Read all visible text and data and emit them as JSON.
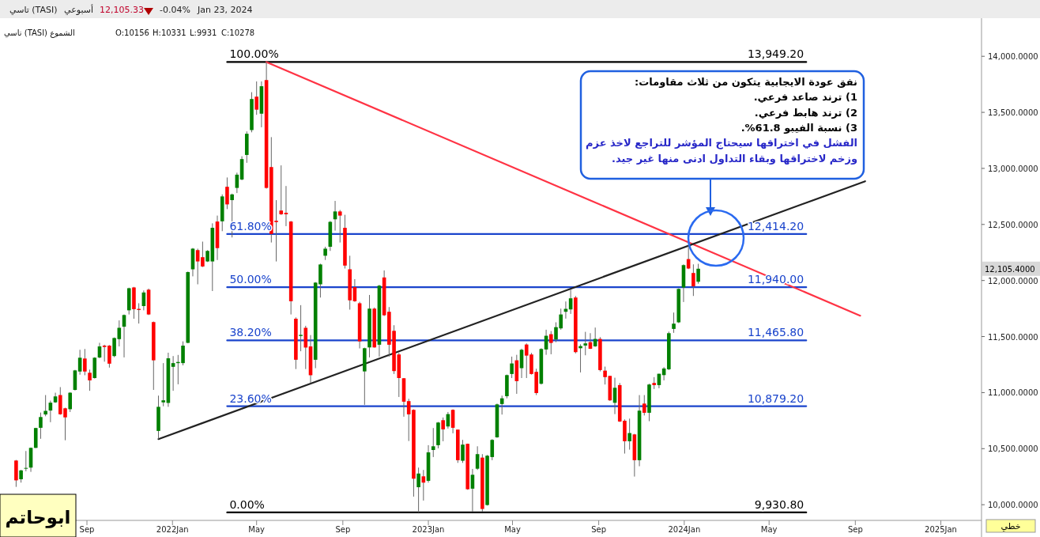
{
  "chart_data": {
    "type": "candlestick",
    "title": "تاسي (TASI)",
    "subtitle": "أسبوعي",
    "xlim": [
      "2021-04-30",
      "2025-02-28"
    ],
    "ylim": [
      9860,
      14340
    ],
    "xticks": [
      {
        "value": "2021-09-01",
        "label": "Sep"
      },
      {
        "value": "2022-01-01",
        "label": "2022Jan"
      },
      {
        "value": "2022-05-01",
        "label": "May"
      },
      {
        "value": "2022-09-01",
        "label": "Sep"
      },
      {
        "value": "2023-01-01",
        "label": "2023Jan"
      },
      {
        "value": "2023-05-01",
        "label": "May"
      },
      {
        "value": "2023-09-01",
        "label": "Sep"
      },
      {
        "value": "2024-01-01",
        "label": "2024Jan"
      },
      {
        "value": "2024-05-01",
        "label": "May"
      },
      {
        "value": "2024-09-01",
        "label": "Sep"
      },
      {
        "value": "2025-01-01",
        "label": "2025Jan"
      }
    ],
    "yticks": [
      {
        "value": 10000,
        "label": "10,000.0000"
      },
      {
        "value": 10500,
        "label": "10,500.0000"
      },
      {
        "value": 11000,
        "label": "11,000.0000"
      },
      {
        "value": 11500,
        "label": "11,500.0000"
      },
      {
        "value": 12000,
        "label": "12,000.0000"
      },
      {
        "value": 12500,
        "label": "12,500.0000"
      },
      {
        "value": 13000,
        "label": "13,000.0000"
      },
      {
        "value": 13500,
        "label": "13,500.0000"
      },
      {
        "value": 14000,
        "label": "14,000.0000"
      }
    ],
    "x": [
      "2021-05-23",
      "2021-05-30",
      "2021-06-06",
      "2021-06-13",
      "2021-06-20",
      "2021-06-27",
      "2021-07-04",
      "2021-07-11",
      "2021-07-18",
      "2021-07-25",
      "2021-08-01",
      "2021-08-08",
      "2021-08-15",
      "2021-08-22",
      "2021-08-29",
      "2021-09-05",
      "2021-09-12",
      "2021-09-19",
      "2021-09-26",
      "2021-10-03",
      "2021-10-10",
      "2021-10-17",
      "2021-10-24",
      "2021-10-31",
      "2021-11-07",
      "2021-11-14",
      "2021-11-21",
      "2021-11-28",
      "2021-12-05",
      "2021-12-12",
      "2021-12-19",
      "2021-12-26",
      "2022-01-02",
      "2022-01-09",
      "2022-01-16",
      "2022-01-23",
      "2022-01-30",
      "2022-02-06",
      "2022-02-13",
      "2022-02-20",
      "2022-02-27",
      "2022-03-06",
      "2022-03-13",
      "2022-03-20",
      "2022-03-27",
      "2022-04-03",
      "2022-04-10",
      "2022-04-17",
      "2022-04-24",
      "2022-05-01",
      "2022-05-08",
      "2022-05-15",
      "2022-05-22",
      "2022-05-29",
      "2022-06-05",
      "2022-06-12",
      "2022-06-19",
      "2022-06-26",
      "2022-07-03",
      "2022-07-10",
      "2022-07-17",
      "2022-07-24",
      "2022-07-31",
      "2022-08-07",
      "2022-08-14",
      "2022-08-21",
      "2022-08-28",
      "2022-09-04",
      "2022-09-11",
      "2022-09-18",
      "2022-09-25",
      "2022-10-02",
      "2022-10-09",
      "2022-10-16",
      "2022-10-23",
      "2022-10-30",
      "2022-11-06",
      "2022-11-13",
      "2022-11-20",
      "2022-11-27",
      "2022-12-04",
      "2022-12-11",
      "2022-12-18",
      "2022-12-25",
      "2023-01-01",
      "2023-01-08",
      "2023-01-15",
      "2023-01-22",
      "2023-01-29",
      "2023-02-05",
      "2023-02-12",
      "2023-02-19",
      "2023-02-26",
      "2023-03-05",
      "2023-03-12",
      "2023-03-19",
      "2023-03-26",
      "2023-04-02",
      "2023-04-09",
      "2023-04-16",
      "2023-04-23",
      "2023-04-30",
      "2023-05-07",
      "2023-05-14",
      "2023-05-21",
      "2023-05-28",
      "2023-06-04",
      "2023-06-11",
      "2023-06-18",
      "2023-06-25",
      "2023-07-02",
      "2023-07-09",
      "2023-07-16",
      "2023-07-23",
      "2023-07-30",
      "2023-08-06",
      "2023-08-13",
      "2023-08-20",
      "2023-08-27",
      "2023-09-03",
      "2023-09-10",
      "2023-09-17",
      "2023-09-24",
      "2023-10-01",
      "2023-10-08",
      "2023-10-15",
      "2023-10-22",
      "2023-10-29",
      "2023-11-05",
      "2023-11-12",
      "2023-11-19",
      "2023-11-26",
      "2023-12-03",
      "2023-12-10",
      "2023-12-17",
      "2023-12-24",
      "2023-12-31",
      "2024-01-07",
      "2024-01-14",
      "2024-01-21"
    ],
    "ohlc": [
      [
        10394,
        10399,
        10159,
        10217
      ],
      [
        10227,
        10311,
        10197,
        10306
      ],
      [
        10321,
        10479,
        10298,
        10328
      ],
      [
        10331,
        10510,
        10293,
        10507
      ],
      [
        10507,
        10686,
        10505,
        10684
      ],
      [
        10686,
        10822,
        10588,
        10782
      ],
      [
        10805,
        10978,
        10789,
        10837
      ],
      [
        10840,
        10928,
        10736,
        10910
      ],
      [
        10913,
        10999,
        10908,
        10966
      ],
      [
        10978,
        11049,
        10802,
        10807
      ],
      [
        10860,
        10865,
        10575,
        10779
      ],
      [
        10852,
        11004,
        10827,
        10999
      ],
      [
        11024,
        11203,
        11019,
        11198
      ],
      [
        11188,
        11382,
        11160,
        11311
      ],
      [
        11304,
        11389,
        11155,
        11188
      ],
      [
        11177,
        11205,
        11016,
        11109
      ],
      [
        11130,
        11316,
        11125,
        11311
      ],
      [
        11313,
        11444,
        11306,
        11412
      ],
      [
        11419,
        11427,
        11276,
        11407
      ],
      [
        11419,
        11424,
        11223,
        11258
      ],
      [
        11326,
        11492,
        11316,
        11487
      ],
      [
        11477,
        11644,
        11412,
        11578
      ],
      [
        11588,
        11697,
        11314,
        11692
      ],
      [
        11734,
        11936,
        11697,
        11931
      ],
      [
        11938,
        11943,
        11659,
        11744
      ],
      [
        11747,
        11797,
        11616,
        11737
      ],
      [
        11772,
        11911,
        11734,
        11893
      ],
      [
        11918,
        11928,
        11692,
        11697
      ],
      [
        11629,
        11634,
        11024,
        11288
      ],
      [
        10658,
        10973,
        10588,
        10873
      ],
      [
        10913,
        11263,
        10878,
        10931
      ],
      [
        10908,
        11356,
        10873,
        11306
      ],
      [
        11230,
        11326,
        11016,
        11263
      ],
      [
        11263,
        11336,
        11074,
        11273
      ],
      [
        11263,
        11457,
        11243,
        11419
      ],
      [
        11444,
        12080,
        11440,
        12075
      ],
      [
        12100,
        12290,
        12037,
        12284
      ],
      [
        12271,
        12284,
        11966,
        12170
      ],
      [
        12208,
        12347,
        12120,
        12125
      ],
      [
        12170,
        12271,
        12165,
        12264
      ],
      [
        12170,
        12510,
        11906,
        12470
      ],
      [
        12526,
        12579,
        12183,
        12289
      ],
      [
        12528,
        12768,
        12440,
        12750
      ],
      [
        12836,
        12919,
        12637,
        12679
      ],
      [
        12717,
        12775,
        12384,
        12768
      ],
      [
        12826,
        12962,
        12780,
        12944
      ],
      [
        12901,
        13108,
        12894,
        13083
      ],
      [
        13120,
        13330,
        13050,
        13309
      ],
      [
        13342,
        13680,
        13322,
        13619
      ],
      [
        13640,
        13776,
        13478,
        13524
      ],
      [
        13488,
        13776,
        13367,
        13733
      ],
      [
        13788,
        13949,
        12820,
        12826
      ],
      [
        13012,
        13279,
        12339,
        12415
      ],
      [
        12533,
        12717,
        12170,
        12521
      ],
      [
        12624,
        13027,
        12585,
        12591
      ],
      [
        12604,
        12843,
        12485,
        12591
      ],
      [
        12526,
        12531,
        11697,
        11815
      ],
      [
        11659,
        11671,
        11210,
        11293
      ],
      [
        11505,
        11780,
        11369,
        11515
      ],
      [
        11578,
        11596,
        11210,
        11402
      ],
      [
        11412,
        11513,
        11084,
        11155
      ],
      [
        11293,
        11986,
        11218,
        11981
      ],
      [
        11966,
        12150,
        11848,
        12143
      ],
      [
        12221,
        12301,
        12183,
        12284
      ],
      [
        12301,
        12531,
        12264,
        12523
      ],
      [
        12546,
        12710,
        12445,
        12616
      ],
      [
        12616,
        12629,
        12339,
        12579
      ],
      [
        12470,
        12586,
        12107,
        12133
      ],
      [
        12100,
        12221,
        11740,
        11823
      ],
      [
        11941,
        12012,
        11810,
        11815
      ],
      [
        11797,
        11810,
        11394,
        11457
      ],
      [
        11189,
        11401,
        10891,
        11396
      ],
      [
        11403,
        11871,
        11314,
        11749
      ],
      [
        11749,
        11759,
        11401,
        11403
      ],
      [
        11427,
        11961,
        11321,
        11954
      ],
      [
        12027,
        12090,
        11683,
        11690
      ],
      [
        11721,
        11763,
        11321,
        11427
      ],
      [
        11551,
        11601,
        11166,
        11192
      ],
      [
        11340,
        11354,
        10961,
        11130
      ],
      [
        11128,
        11130,
        10785,
        10919
      ],
      [
        10924,
        10945,
        10568,
        10806
      ],
      [
        10846,
        10851,
        10072,
        10232
      ],
      [
        10156,
        10331,
        9931,
        10278
      ],
      [
        10253,
        10310,
        10037,
        10197
      ],
      [
        10213,
        10531,
        10197,
        10467
      ],
      [
        10488,
        10684,
        10425,
        10521
      ],
      [
        10531,
        10738,
        10503,
        10733
      ],
      [
        10754,
        10778,
        10566,
        10672
      ],
      [
        10698,
        10827,
        10679,
        10808
      ],
      [
        10846,
        10851,
        10637,
        10686
      ],
      [
        10670,
        10670,
        10373,
        10397
      ],
      [
        10392,
        10578,
        10373,
        10536
      ],
      [
        10543,
        10545,
        10133,
        10138
      ],
      [
        10143,
        10319,
        9935,
        10267
      ],
      [
        10321,
        10521,
        10310,
        10451
      ],
      [
        10420,
        10451,
        9935,
        9962
      ],
      [
        9997,
        10444,
        9992,
        10437
      ],
      [
        10425,
        10585,
        10397,
        10578
      ],
      [
        10601,
        10902,
        10597,
        10895
      ],
      [
        10898,
        10973,
        10804,
        10949
      ],
      [
        10968,
        11161,
        10949,
        11156
      ],
      [
        11166,
        11321,
        11130,
        11260
      ],
      [
        11288,
        11337,
        10989,
        11102
      ],
      [
        11218,
        11392,
        11130,
        11382
      ],
      [
        11429,
        11439,
        11130,
        11330
      ],
      [
        11340,
        11354,
        11161,
        11166
      ],
      [
        11185,
        11213,
        10978,
        10996
      ],
      [
        11079,
        11396,
        11072,
        11389
      ],
      [
        11385,
        11561,
        11337,
        11507
      ],
      [
        11521,
        11549,
        11342,
        11443
      ],
      [
        11474,
        11627,
        11450,
        11584
      ],
      [
        11573,
        11749,
        11561,
        11697
      ],
      [
        11721,
        11813,
        11660,
        11747
      ],
      [
        11742,
        11918,
        11702,
        11841
      ],
      [
        11848,
        11862,
        11350,
        11361
      ],
      [
        11396,
        11431,
        11180,
        11415
      ],
      [
        11420,
        11542,
        11333,
        11439
      ],
      [
        11450,
        11530,
        11389,
        11391
      ],
      [
        11413,
        11580,
        11408,
        11479
      ],
      [
        11479,
        11495,
        11189,
        11201
      ],
      [
        11196,
        11232,
        11072,
        11138
      ],
      [
        11149,
        11149,
        10926,
        10931
      ],
      [
        10909,
        11133,
        10808,
        11043
      ],
      [
        11067,
        11086,
        10738,
        10742
      ],
      [
        10749,
        10761,
        10456,
        10566
      ],
      [
        10566,
        10768,
        10491,
        10639
      ],
      [
        10627,
        10632,
        10251,
        10397
      ],
      [
        10397,
        10978,
        10343,
        10839
      ],
      [
        10902,
        10978,
        10796,
        10820
      ],
      [
        10820,
        11079,
        10745,
        11072
      ],
      [
        11086,
        11138,
        11032,
        11067
      ],
      [
        11067,
        11168,
        11039,
        11168
      ],
      [
        11156,
        11227,
        11109,
        11215
      ],
      [
        11208,
        11544,
        11201,
        11530
      ],
      [
        11568,
        11714,
        11533,
        11615
      ],
      [
        11627,
        11930,
        11620,
        11925
      ],
      [
        11937,
        12144,
        11808,
        12137
      ],
      [
        12191,
        12314,
        12102,
        12107
      ],
      [
        12067,
        12144,
        11862,
        11949
      ],
      [
        11989,
        12149,
        11972,
        12105
      ]
    ],
    "colors": [
      "#ff0000",
      "#008000",
      "#008000",
      "#008000",
      "#008000",
      "#008000",
      "#008000",
      "#008000",
      "#008000",
      "#ff0000",
      "#ff0000",
      "#008000",
      "#008000",
      "#008000",
      "#ff0000",
      "#ff0000",
      "#008000",
      "#008000",
      "#ff0000",
      "#ff0000",
      "#008000",
      "#008000",
      "#008000",
      "#008000",
      "#ff0000",
      "#ff0000",
      "#008000",
      "#ff0000",
      "#ff0000",
      "#008000",
      "#008000",
      "#008000",
      "#008000",
      "#008000",
      "#008000",
      "#008000",
      "#008000",
      "#ff0000",
      "#ff0000",
      "#008000",
      "#008000",
      "#ff0000",
      "#008000",
      "#ff0000",
      "#008000",
      "#008000",
      "#008000",
      "#008000",
      "#008000",
      "#ff0000",
      "#008000",
      "#ff0000",
      "#ff0000",
      "#ff0000",
      "#ff0000",
      "#ff0000",
      "#ff0000",
      "#ff0000",
      "#008000",
      "#ff0000",
      "#ff0000",
      "#008000",
      "#008000",
      "#008000",
      "#008000",
      "#008000",
      "#ff0000",
      "#ff0000",
      "#ff0000",
      "#ff0000",
      "#ff0000",
      "#008000",
      "#008000",
      "#ff0000",
      "#008000",
      "#ff0000",
      "#ff0000",
      "#ff0000",
      "#ff0000",
      "#ff0000",
      "#ff0000",
      "#ff0000",
      "#008000",
      "#ff0000",
      "#008000",
      "#008000",
      "#008000",
      "#ff0000",
      "#008000",
      "#ff0000",
      "#ff0000",
      "#008000",
      "#ff0000",
      "#008000",
      "#008000",
      "#ff0000",
      "#008000",
      "#008000",
      "#008000",
      "#008000",
      "#008000",
      "#008000",
      "#ff0000",
      "#008000",
      "#ff0000",
      "#ff0000",
      "#ff0000",
      "#008000",
      "#008000",
      "#ff0000",
      "#008000",
      "#008000",
      "#008000",
      "#008000",
      "#ff0000",
      "#008000",
      "#008000",
      "#ff0000",
      "#008000",
      "#ff0000",
      "#ff0000",
      "#ff0000",
      "#008000",
      "#ff0000",
      "#ff0000",
      "#008000",
      "#ff0000",
      "#008000",
      "#ff0000",
      "#008000",
      "#ff0000",
      "#008000",
      "#008000",
      "#008000",
      "#008000",
      "#008000",
      "#008000",
      "#ff0000",
      "#ff0000",
      "#008000"
    ],
    "series": [
      {
        "type": "line",
        "color": "#000000",
        "x": [
          "2022-03-20",
          "2024-06-23"
        ],
        "values": [
          13949.2,
          13949.2
        ]
      },
      {
        "type": "line",
        "color": "#1a44cc",
        "x": [
          "2022-03-20",
          "2024-06-23"
        ],
        "values": [
          12414.2,
          12414.2
        ]
      },
      {
        "type": "line",
        "color": "#1a44cc",
        "x": [
          "2022-03-20",
          "2024-06-23"
        ],
        "values": [
          11940,
          11940
        ]
      },
      {
        "type": "line",
        "color": "#1a44cc",
        "x": [
          "2022-03-20",
          "2024-06-23"
        ],
        "values": [
          11465.8,
          11465.8
        ]
      },
      {
        "type": "line",
        "color": "#1a44cc",
        "x": [
          "2022-03-20",
          "2024-06-23"
        ],
        "values": [
          10879.2,
          10879.2
        ]
      },
      {
        "type": "line",
        "color": "#000000",
        "x": [
          "2022-03-20",
          "2024-06-23"
        ],
        "values": [
          9930.8,
          9930.8
        ]
      },
      {
        "type": "line",
        "color": "#ff3344",
        "x": [
          "2022-05-15",
          "2024-09-08"
        ],
        "values": [
          13949,
          11686
        ]
      },
      {
        "type": "line",
        "color": "#222222",
        "x": [
          "2021-12-12",
          "2024-09-15"
        ],
        "values": [
          10585,
          12885
        ]
      }
    ],
    "annotations": [
      "12,105.33",
      "-0.04%",
      "Jan 23, 2024",
      "تاسي (TASI) الشموع",
      "O:10156",
      "H:10331",
      "L:9931",
      "C:10278",
      "نفق عودة الايجابية يتكون من ثلاث مقاومات:",
      "1) ترند صاعد فرعي.",
      "2) ترند هابط فرعي.",
      "3) نسبة الفيبو 61.8%.",
      "الفشل في اختراقها سيحتاج المؤشر للتراجع لاخذ عزم",
      "وزخم لاختراقها وبقاء التداول ادنى منها غير جيد.",
      "ابوحاتم",
      "خطي",
      "12,105.4000",
      {
        "text": "100.00%",
        "x": "2022-03-20",
        "y": 13949.2
      },
      {
        "text": "13,949.20",
        "x": "2024-06-23",
        "y": 13949.2
      },
      {
        "text": "61.80%",
        "x": "2022-03-20",
        "y": 12414.2
      },
      {
        "text": "12,414.20",
        "x": "2024-06-23",
        "y": 12414.2
      },
      {
        "text": "50.00%",
        "x": "2022-03-20",
        "y": 11940
      },
      {
        "text": "11,940.00",
        "x": "2024-06-23",
        "y": 11940
      },
      {
        "text": "38.20%",
        "x": "2022-03-20",
        "y": 11465.8
      },
      {
        "text": "11,465.80",
        "x": "2024-06-23",
        "y": 11465.8
      },
      {
        "text": "23.60%",
        "x": "2022-03-20",
        "y": 10879.2
      },
      {
        "text": "10,879.20",
        "x": "2024-06-23",
        "y": 10879.2
      },
      {
        "text": "0.00%",
        "x": "2022-03-20",
        "y": 9930.8
      },
      {
        "text": "9,930.80",
        "x": "2024-06-23",
        "y": 9930.8
      }
    ]
  }
}
